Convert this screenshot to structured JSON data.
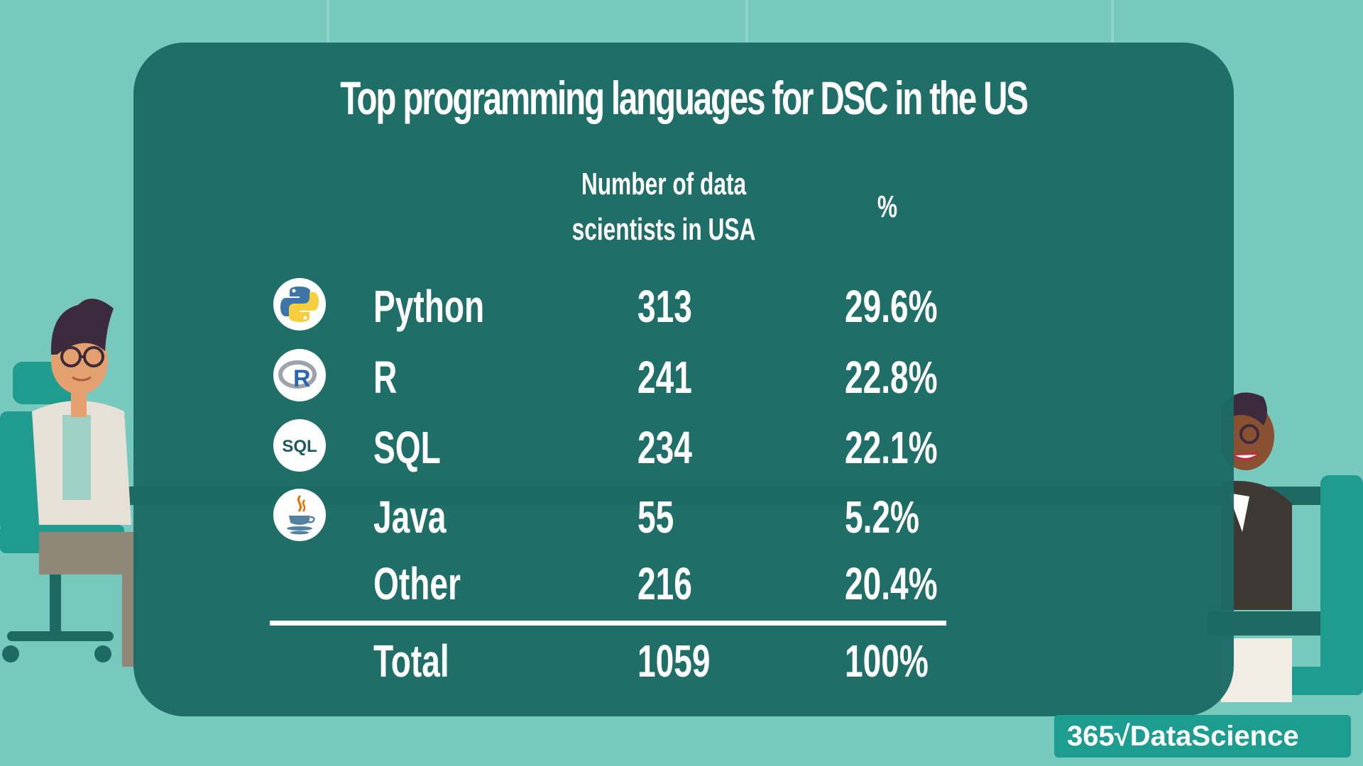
{
  "title": "Top programming languages for DSC in the US",
  "table": {
    "header_count_line1": "Number of data",
    "header_count_line2": "scientists in USA",
    "header_percent": "%",
    "rows": [
      {
        "language": "Python",
        "icon": "python-icon",
        "count": "313",
        "percent": "29.6%"
      },
      {
        "language": "R",
        "icon": "r-icon",
        "count": "241",
        "percent": "22.8%"
      },
      {
        "language": "SQL",
        "icon": "sql-icon",
        "count": "234",
        "percent": "22.1%"
      },
      {
        "language": "Java",
        "icon": "java-icon",
        "count": "55",
        "percent": "5.2%"
      },
      {
        "language": "Other",
        "icon": "",
        "count": "216",
        "percent": "20.4%"
      }
    ],
    "total": {
      "label": "Total",
      "count": "1059",
      "percent": "100%"
    }
  },
  "logo": {
    "text": "365√DataScience"
  },
  "colors": {
    "background": "#77c9bd",
    "panel": "#1c6a64",
    "text": "#ffffff",
    "logo_bg": "#1c9d8f"
  }
}
